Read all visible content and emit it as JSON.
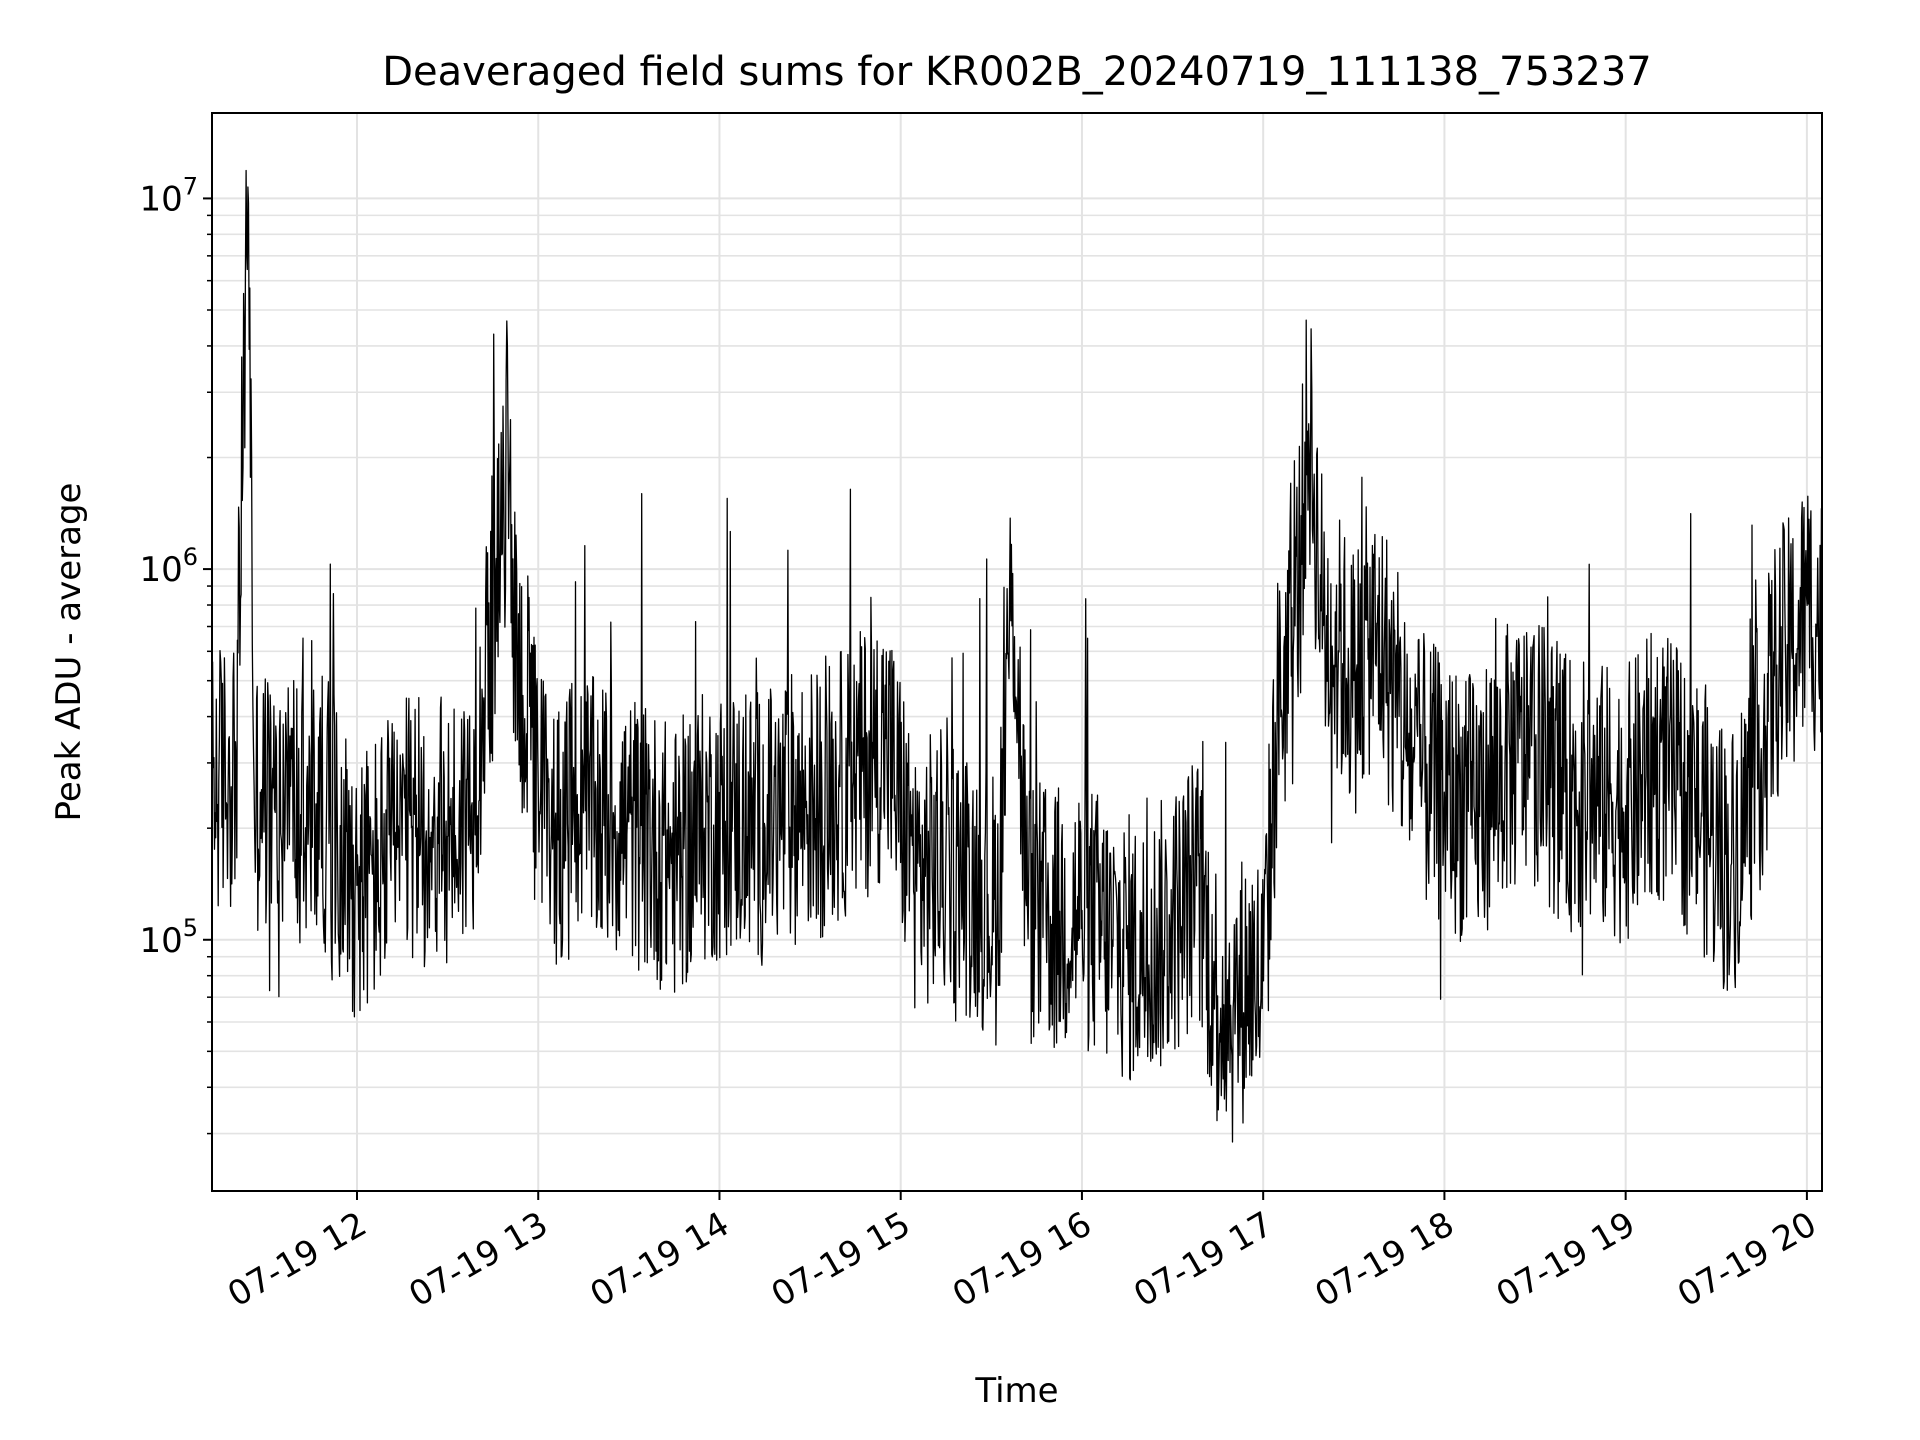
{
  "chart_data": {
    "type": "line",
    "title": "Deaveraged field sums for KR002B_20240719_111138_753237",
    "xlabel": "Time",
    "ylabel": "Peak ADU - average",
    "yscale": "log",
    "xlim": [
      "2024-07-19 11:12",
      "2024-07-19 20:05"
    ],
    "ylim": [
      21000,
      17000000
    ],
    "grid": true,
    "x_ticks": [
      "07-19 12",
      "07-19 13",
      "07-19 14",
      "07-19 15",
      "07-19 16",
      "07-19 17",
      "07-19 18",
      "07-19 19",
      "07-19 20"
    ],
    "y_ticks": [
      {
        "base": "10",
        "exp": "5",
        "value": 100000
      },
      {
        "base": "10",
        "exp": "6",
        "value": 1000000
      },
      {
        "base": "10",
        "exp": "7",
        "value": 10000000
      }
    ],
    "line_color": "#000000",
    "series": [
      {
        "x": [
          "11:12",
          "11:20",
          "11:24",
          "11:26",
          "11:28",
          "11:33",
          "11:38",
          "11:43",
          "11:48",
          "11:55",
          "12:00",
          "12:05",
          "12:12",
          "12:20",
          "12:30",
          "12:38",
          "12:45",
          "12:48",
          "12:50",
          "12:52",
          "12:55",
          "13:00",
          "13:05",
          "13:15",
          "13:25",
          "13:35",
          "13:45",
          "13:55",
          "14:05",
          "14:15",
          "14:25",
          "14:35",
          "14:45",
          "14:55",
          "15:05",
          "15:15",
          "15:25",
          "15:32",
          "15:37",
          "15:42",
          "15:50",
          "16:00",
          "16:10",
          "16:20",
          "16:30",
          "16:38",
          "16:45",
          "16:50",
          "16:55",
          "17:00",
          "17:05",
          "17:10",
          "17:15",
          "17:20",
          "17:25",
          "17:30",
          "17:35",
          "17:40",
          "17:45",
          "17:50",
          "18:00",
          "18:10",
          "18:20",
          "18:30",
          "18:40",
          "18:50",
          "19:00",
          "19:10",
          "19:20",
          "19:25",
          "19:30",
          "19:35",
          "19:40",
          "19:45",
          "19:50",
          "19:55",
          "20:00",
          "20:05"
        ],
        "y": [
          260000,
          300000,
          11700000,
          230000,
          250000,
          220000,
          260000,
          200000,
          230000,
          180000,
          140000,
          150000,
          180000,
          200000,
          190000,
          230000,
          800000,
          1100000,
          2400000,
          700000,
          450000,
          250000,
          200000,
          220000,
          210000,
          190000,
          160000,
          200000,
          210000,
          200000,
          230000,
          240000,
          280000,
          350000,
          150000,
          160000,
          140000,
          120000,
          1000000,
          120000,
          110000,
          120000,
          100000,
          90000,
          110000,
          140000,
          70000,
          65000,
          80000,
          75000,
          450000,
          600000,
          2500000,
          700000,
          600000,
          500000,
          650000,
          600000,
          400000,
          300000,
          250000,
          220000,
          300000,
          330000,
          250000,
          240000,
          230000,
          300000,
          250000,
          220000,
          180000,
          160000,
          230000,
          330000,
          550000,
          600000,
          800000,
          700000
        ]
      }
    ]
  }
}
